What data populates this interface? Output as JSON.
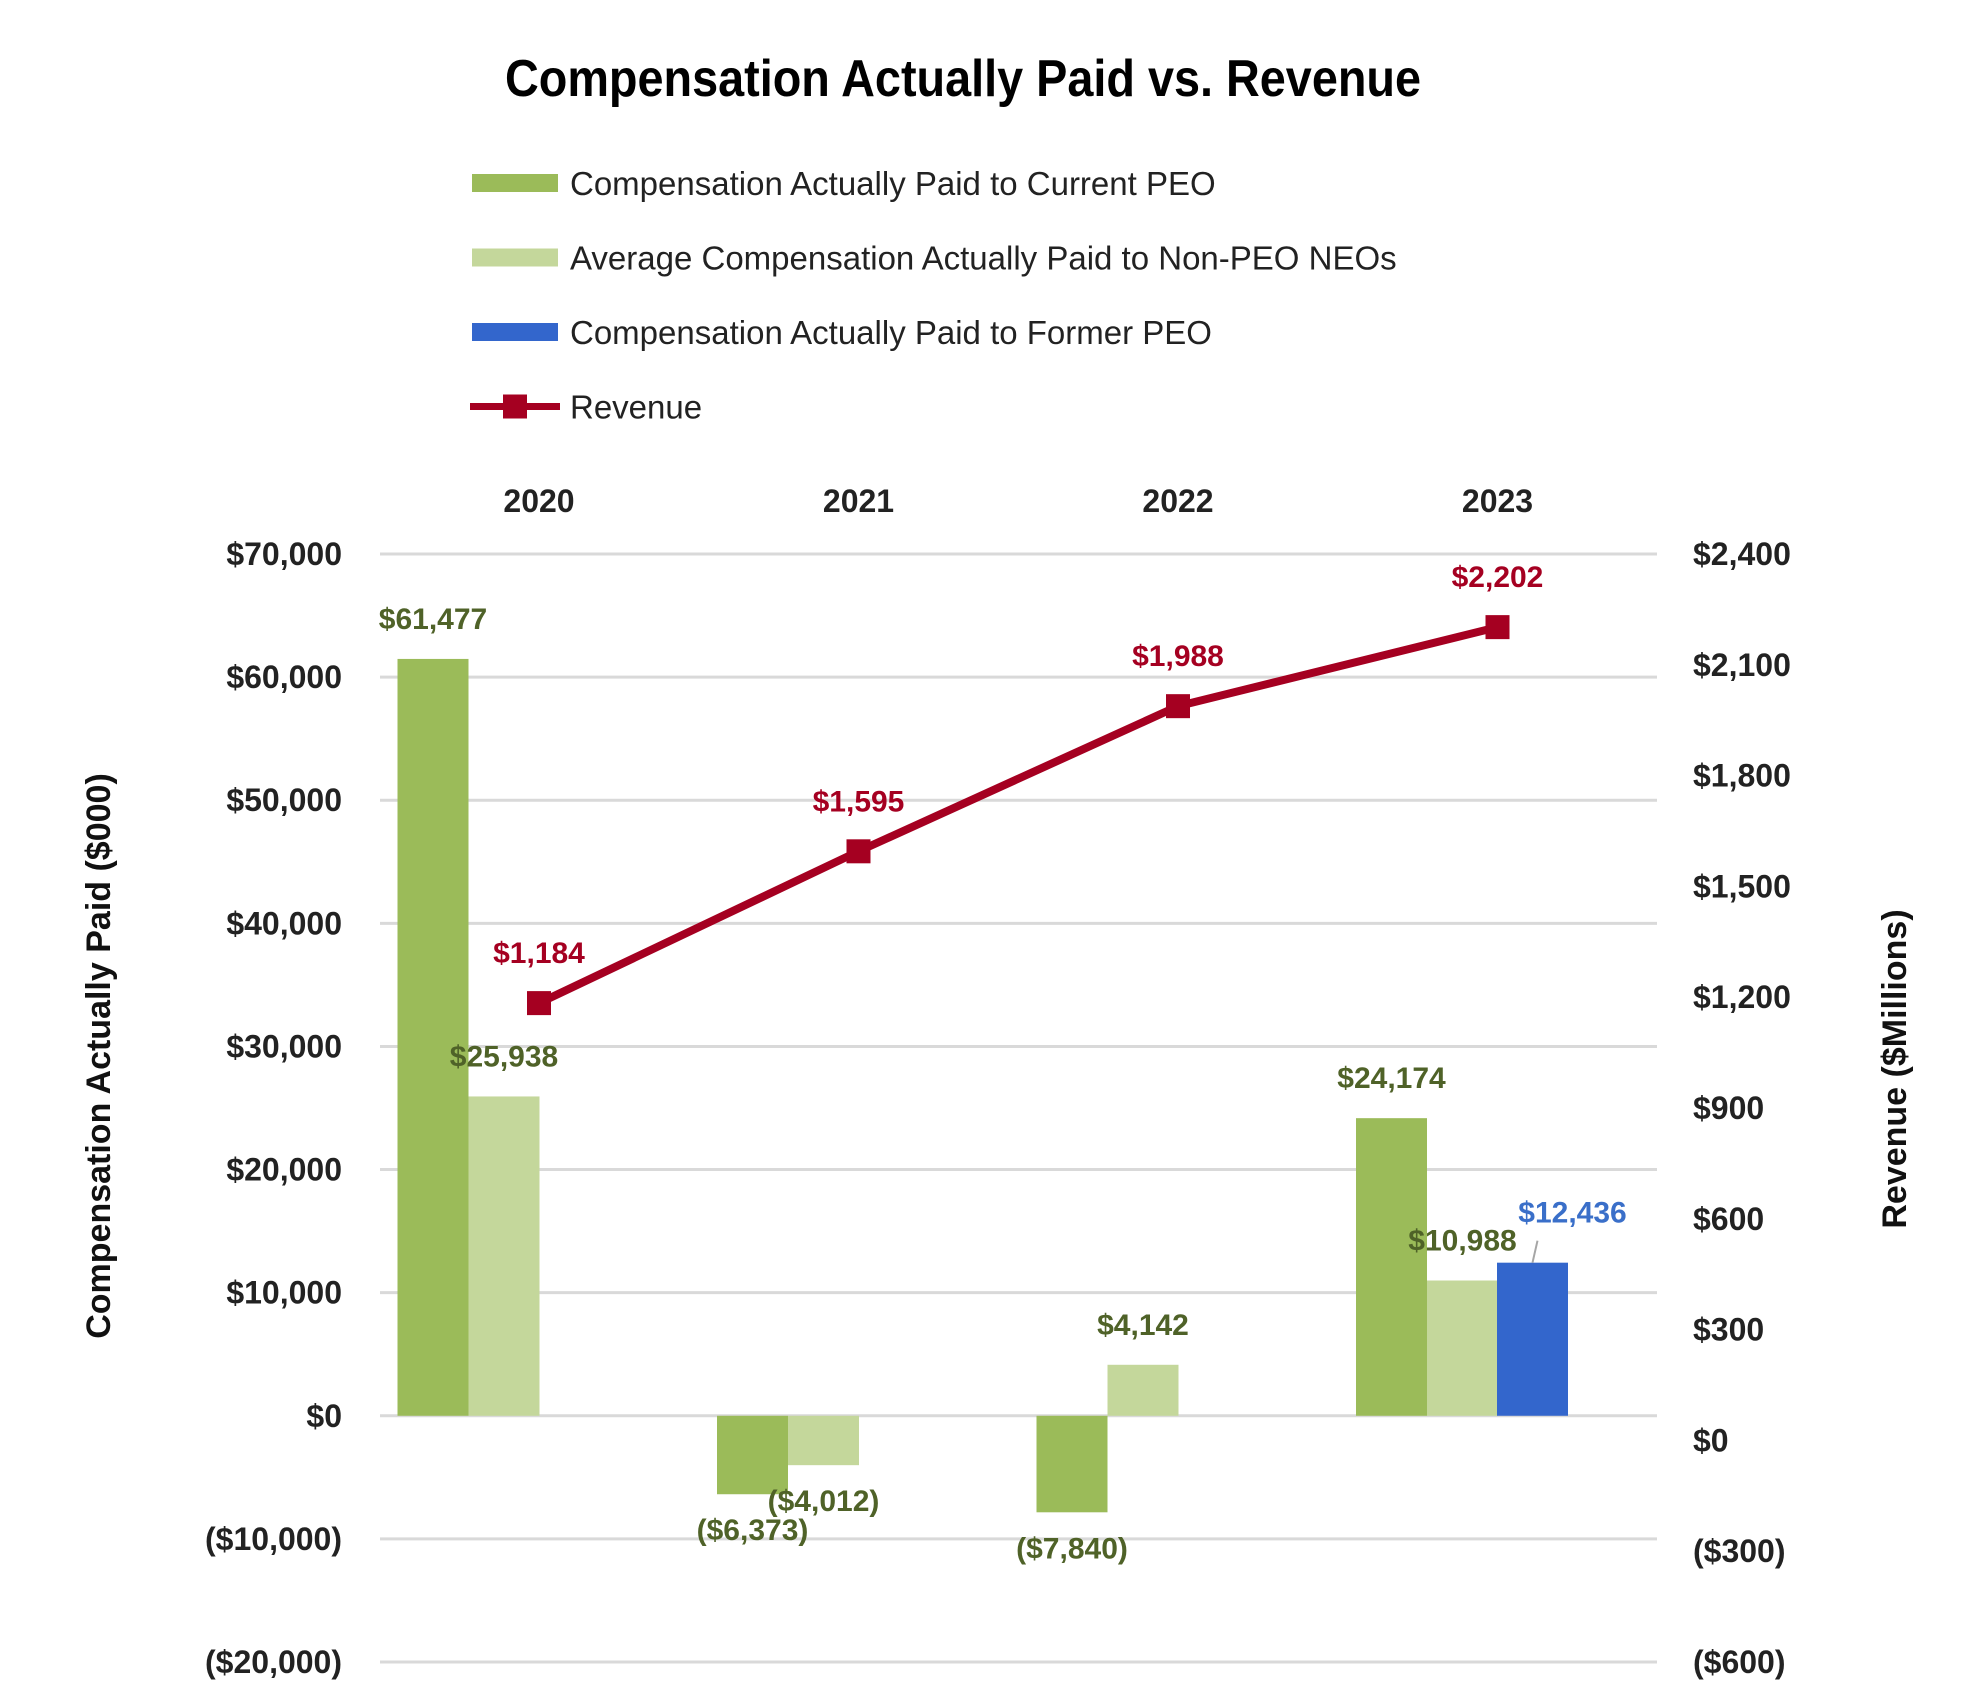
{
  "chart_data": {
    "type": "bar",
    "title": "Compensation Actually Paid vs. Revenue",
    "categories": [
      "2020",
      "2021",
      "2022",
      "2023"
    ],
    "ylabel": "Compensation Actually Paid ($000)",
    "y2label": "Revenue ($Millions)",
    "ylim": [
      -20000,
      70000
    ],
    "y2lim": [
      -600,
      2400
    ],
    "yticks": [
      "$70,000",
      "$60,000",
      "$50,000",
      "$40,000",
      "$30,000",
      "$20,000",
      "$10,000",
      "$0",
      "($10,000)",
      "($20,000)"
    ],
    "y2ticks": [
      "$2,400",
      "$2,100",
      "$1,800",
      "$1,500",
      "$1,200",
      "$900",
      "$600",
      "$300",
      "$0",
      "($300)",
      "($600)"
    ],
    "grid": true,
    "legend_position": "top",
    "series": [
      {
        "name": "Compensation Actually Paid to Current PEO",
        "type": "bar",
        "color": "#9BBB59",
        "label_color": "#4F6228",
        "values": [
          61477,
          -6373,
          -7840,
          24174
        ],
        "labels": [
          "$61,477",
          "($6,373)",
          "($7,840)",
          "$24,174"
        ]
      },
      {
        "name": "Average Compensation Actually Paid to Non-PEO NEOs",
        "type": "bar",
        "color": "#C4D79B",
        "label_color": "#4F6228",
        "values": [
          25938,
          -4012,
          4142,
          10988
        ],
        "labels": [
          "$25,938",
          "($4,012)",
          "$4,142",
          "$10,988"
        ]
      },
      {
        "name": "Compensation Actually Paid to Former PEO",
        "type": "bar",
        "color": "#3366CC",
        "label_color": "#3A6FC9",
        "values": [
          null,
          null,
          null,
          12436
        ],
        "labels": [
          "",
          "",
          "",
          "$12,436"
        ]
      },
      {
        "name": "Revenue",
        "type": "line",
        "axis": "right",
        "color": "#A50021",
        "label_color": "#A50021",
        "values": [
          1184,
          1595,
          1988,
          2202
        ],
        "labels": [
          "$1,184",
          "$1,595",
          "$1,988",
          "$2,202"
        ]
      }
    ]
  }
}
